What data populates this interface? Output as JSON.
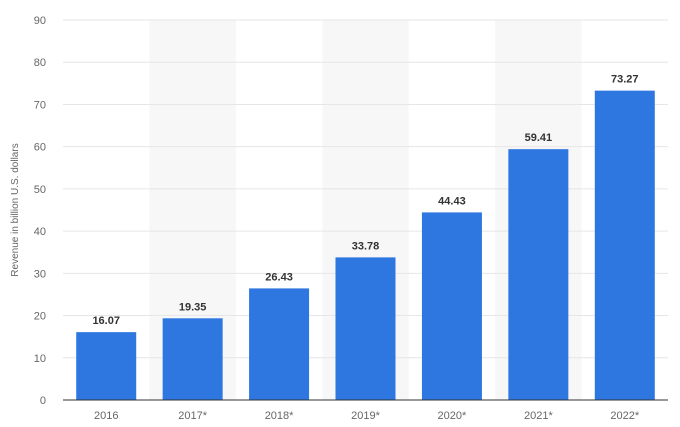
{
  "chart_data": {
    "type": "bar",
    "categories": [
      "2016",
      "2017*",
      "2018*",
      "2019*",
      "2020*",
      "2021*",
      "2022*"
    ],
    "values": [
      16.07,
      19.35,
      26.43,
      33.78,
      44.43,
      59.41,
      73.27
    ],
    "value_labels": [
      "16.07",
      "19.35",
      "26.43",
      "33.78",
      "44.43",
      "59.41",
      "73.27"
    ],
    "title": "",
    "xlabel": "",
    "ylabel": "Revenue in billion U.S. dollars",
    "ylim": [
      0,
      90
    ],
    "yticks": [
      0,
      10,
      20,
      30,
      40,
      50,
      60,
      70,
      80,
      90
    ],
    "ytick_labels": [
      "0",
      "10",
      "20",
      "30",
      "40",
      "50",
      "60",
      "70",
      "80",
      "90"
    ],
    "grid": true,
    "legend": "none",
    "colors": {
      "bar": "#2e77e0",
      "band": "#f7f7f7",
      "grid": "#e6e6e6",
      "axis": "#333333"
    }
  }
}
